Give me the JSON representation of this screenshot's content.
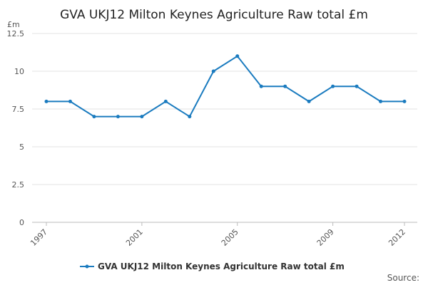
{
  "chart_data": {
    "type": "line",
    "title": "GVA UKJ12 Milton Keynes Agriculture Raw total £m",
    "y_label": "£m",
    "x": [
      1997,
      1998,
      1999,
      2000,
      2001,
      2002,
      2003,
      2004,
      2005,
      2006,
      2007,
      2008,
      2009,
      2010,
      2011,
      2012
    ],
    "xlim": [
      1997,
      2012
    ],
    "xticks": [
      1997,
      2001,
      2005,
      2009,
      2012
    ],
    "ylim": [
      0,
      12.5
    ],
    "yticks": [
      0,
      2.5,
      5,
      7.5,
      10,
      12.5
    ],
    "grid": true,
    "series": [
      {
        "name": "GVA UKJ12 Milton Keynes Agriculture Raw total £m",
        "color": "#1a7bbf",
        "values": [
          8,
          8,
          7,
          7,
          7,
          8,
          7,
          10,
          11,
          9,
          9,
          8,
          9,
          9,
          8,
          8
        ]
      }
    ],
    "source": "Source:"
  }
}
